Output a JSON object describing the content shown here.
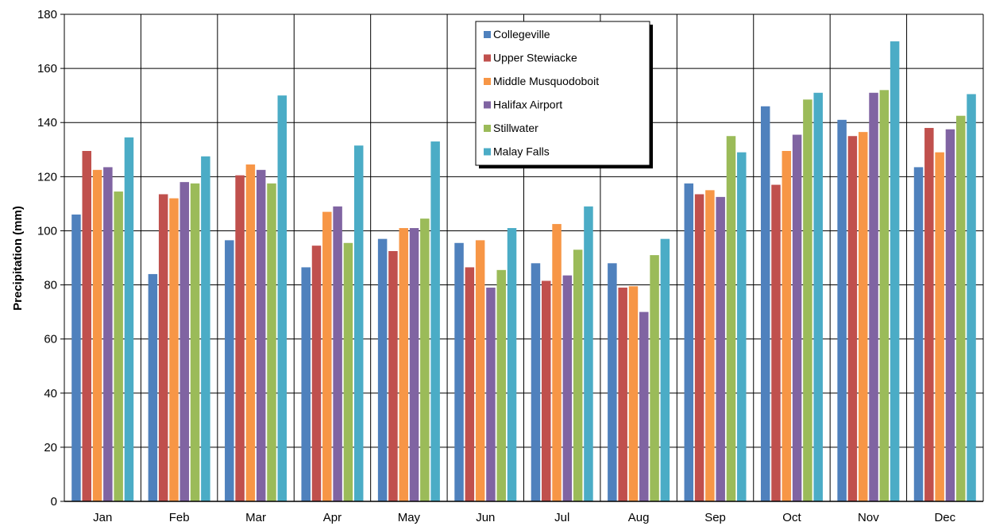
{
  "chart_data": {
    "type": "bar",
    "title": "",
    "xlabel": "",
    "ylabel": "Precipitation  (mm)",
    "ylim": [
      0,
      180
    ],
    "yticks": [
      0,
      20,
      40,
      60,
      80,
      100,
      120,
      140,
      160,
      180
    ],
    "grid": true,
    "legend_position": "top-center",
    "categories": [
      "Jan",
      "Feb",
      "Mar",
      "Apr",
      "May",
      "Jun",
      "Jul",
      "Aug",
      "Sep",
      "Oct",
      "Nov",
      "Dec"
    ],
    "series": [
      {
        "name": "Collegeville",
        "color": "#4F81BD",
        "values": [
          106,
          84,
          96.5,
          86.5,
          97,
          95.5,
          88,
          88,
          117.5,
          146,
          141,
          123.5
        ]
      },
      {
        "name": "Upper Stewiacke",
        "color": "#C0504D",
        "values": [
          129.5,
          113.5,
          120.5,
          94.5,
          92.5,
          86.5,
          81.5,
          79,
          113.5,
          117,
          135,
          138
        ]
      },
      {
        "name": "Middle Musquodoboit",
        "color": "#F79646",
        "values": [
          122.5,
          112,
          124.5,
          107,
          101,
          96.5,
          102.5,
          79.5,
          115,
          129.5,
          136.5,
          129
        ]
      },
      {
        "name": "Halifax Airport",
        "color": "#8064A2",
        "values": [
          123.5,
          118,
          122.5,
          109,
          101,
          79,
          83.5,
          70,
          112.5,
          135.5,
          151,
          137.5
        ]
      },
      {
        "name": "Stillwater",
        "color": "#9BBB59",
        "values": [
          114.5,
          117.5,
          117.5,
          95.5,
          104.5,
          85.5,
          93,
          91,
          135,
          148.5,
          152,
          142.5
        ]
      },
      {
        "name": "Malay Falls",
        "color": "#4BACC6",
        "values": [
          134.5,
          127.5,
          150,
          131.5,
          133,
          101,
          109,
          97,
          129,
          151,
          170,
          150.5
        ]
      }
    ]
  }
}
